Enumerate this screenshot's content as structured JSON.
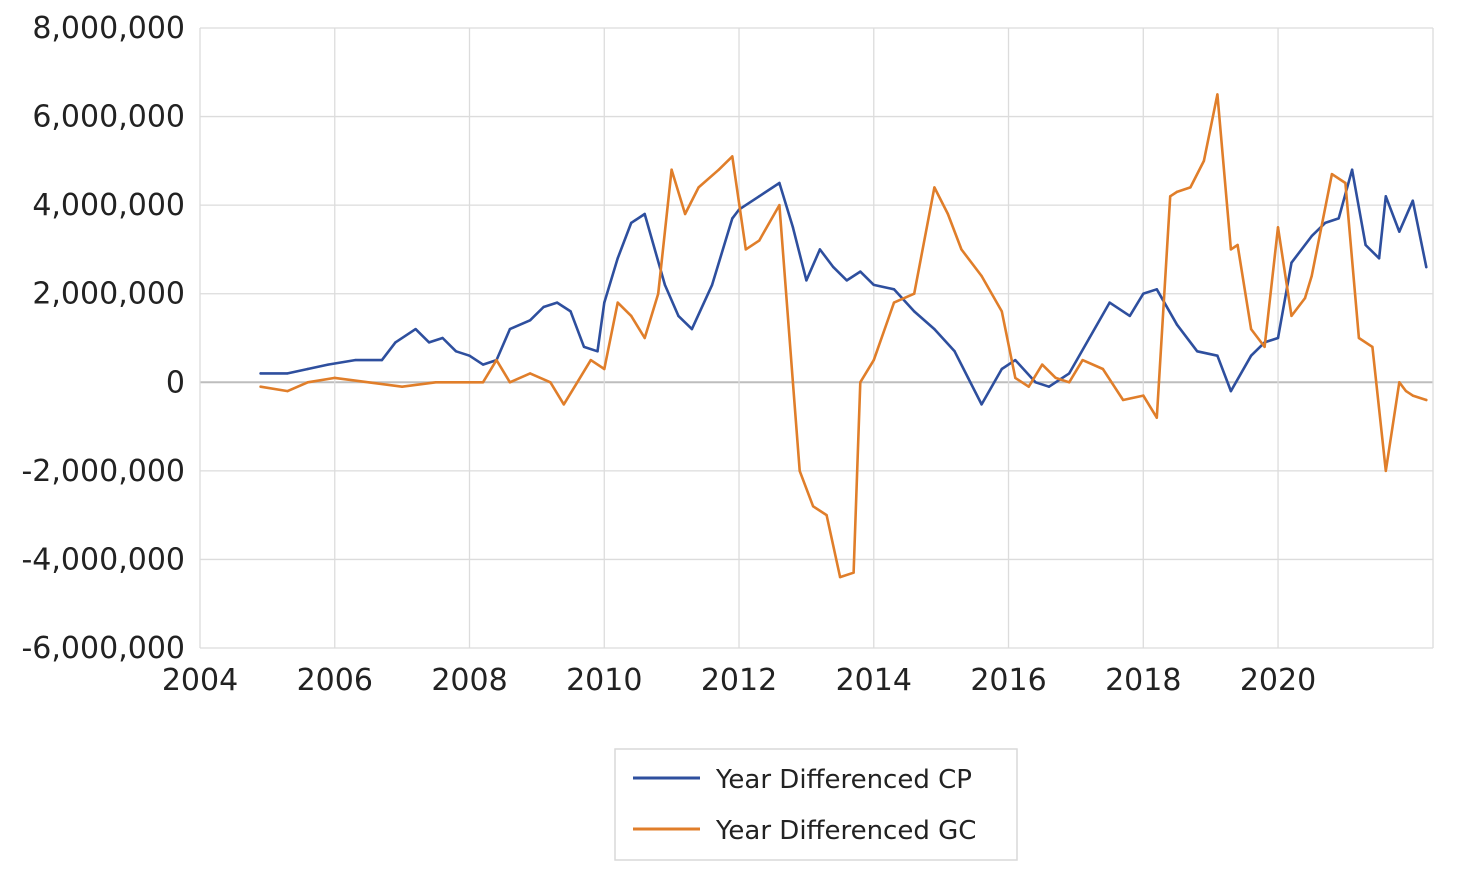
{
  "chart_data": {
    "type": "line",
    "title": "",
    "xlabel": "",
    "ylabel": "",
    "xlim": [
      2004,
      2022.3
    ],
    "ylim": [
      -6000000,
      8000000
    ],
    "x_ticks": [
      2004,
      2006,
      2008,
      2010,
      2012,
      2014,
      2016,
      2018,
      2020
    ],
    "x_tick_labels": [
      "2004",
      "2006",
      "2008",
      "2010",
      "2012",
      "2014",
      "2016",
      "2018",
      "2020"
    ],
    "y_ticks": [
      -6000000,
      -4000000,
      -2000000,
      0,
      2000000,
      4000000,
      6000000,
      8000000
    ],
    "y_tick_labels": [
      "-6,000,000",
      "-4,000,000",
      "-2,000,000",
      "0",
      "2,000,000",
      "4,000,000",
      "6,000,000",
      "8,000,000"
    ],
    "grid": true,
    "legend_position": "bottom",
    "series": [
      {
        "name": "Year Differenced CP",
        "color": "#2E4F9E",
        "x": [
          2004.9,
          2005.3,
          2005.6,
          2005.9,
          2006.3,
          2006.7,
          2006.9,
          2007.2,
          2007.4,
          2007.6,
          2007.8,
          2008.0,
          2008.2,
          2008.4,
          2008.6,
          2008.9,
          2009.1,
          2009.3,
          2009.5,
          2009.7,
          2009.9,
          2010.0,
          2010.2,
          2010.4,
          2010.6,
          2010.9,
          2011.1,
          2011.3,
          2011.6,
          2011.9,
          2012.0,
          2012.3,
          2012.6,
          2012.8,
          2013.0,
          2013.2,
          2013.4,
          2013.6,
          2013.8,
          2014.0,
          2014.3,
          2014.6,
          2014.9,
          2015.2,
          2015.4,
          2015.6,
          2015.9,
          2016.1,
          2016.4,
          2016.6,
          2016.9,
          2017.2,
          2017.5,
          2017.8,
          2018.0,
          2018.2,
          2018.5,
          2018.8,
          2019.1,
          2019.3,
          2019.6,
          2019.8,
          2020.0,
          2020.2,
          2020.5,
          2020.7,
          2020.9,
          2021.1,
          2021.3,
          2021.5,
          2021.6,
          2021.8,
          2022.0,
          2022.2
        ],
        "values": [
          200000,
          200000,
          300000,
          400000,
          500000,
          500000,
          900000,
          1200000,
          900000,
          1000000,
          700000,
          600000,
          400000,
          500000,
          1200000,
          1400000,
          1700000,
          1800000,
          1600000,
          800000,
          700000,
          1800000,
          2800000,
          3600000,
          3800000,
          2200000,
          1500000,
          1200000,
          2200000,
          3700000,
          3900000,
          4200000,
          4500000,
          3500000,
          2300000,
          3000000,
          2600000,
          2300000,
          2500000,
          2200000,
          2100000,
          1600000,
          1200000,
          700000,
          100000,
          -500000,
          300000,
          500000,
          0,
          -100000,
          200000,
          1000000,
          1800000,
          1500000,
          2000000,
          2100000,
          1300000,
          700000,
          600000,
          -200000,
          600000,
          900000,
          1000000,
          2700000,
          3300000,
          3600000,
          3700000,
          4800000,
          3100000,
          2800000,
          4200000,
          3400000,
          4100000,
          2600000
        ]
      },
      {
        "name": "Year Differenced GC",
        "color": "#E07E2A",
        "x": [
          2004.9,
          2005.3,
          2005.6,
          2006.0,
          2006.5,
          2007.0,
          2007.5,
          2008.0,
          2008.2,
          2008.4,
          2008.6,
          2008.9,
          2009.2,
          2009.4,
          2009.6,
          2009.8,
          2010.0,
          2010.2,
          2010.4,
          2010.6,
          2010.8,
          2011.0,
          2011.2,
          2011.4,
          2011.7,
          2011.9,
          2012.1,
          2012.3,
          2012.6,
          2012.8,
          2012.9,
          2013.1,
          2013.3,
          2013.5,
          2013.7,
          2013.8,
          2014.0,
          2014.3,
          2014.6,
          2014.9,
          2015.1,
          2015.3,
          2015.6,
          2015.9,
          2016.1,
          2016.3,
          2016.5,
          2016.7,
          2016.9,
          2017.1,
          2017.4,
          2017.7,
          2018.0,
          2018.2,
          2018.4,
          2018.5,
          2018.7,
          2018.9,
          2019.1,
          2019.3,
          2019.4,
          2019.6,
          2019.8,
          2020.0,
          2020.2,
          2020.4,
          2020.5,
          2020.8,
          2021.0,
          2021.2,
          2021.4,
          2021.6,
          2021.8,
          2021.9,
          2022.0,
          2022.2
        ],
        "values": [
          -100000,
          -200000,
          0,
          100000,
          0,
          -100000,
          0,
          0,
          0,
          500000,
          0,
          200000,
          0,
          -500000,
          0,
          500000,
          300000,
          1800000,
          1500000,
          1000000,
          2000000,
          4800000,
          3800000,
          4400000,
          4800000,
          5100000,
          3000000,
          3200000,
          4000000,
          0,
          -2000000,
          -2800000,
          -3000000,
          -4400000,
          -4300000,
          0,
          500000,
          1800000,
          2000000,
          4400000,
          3800000,
          3000000,
          2400000,
          1600000,
          100000,
          -100000,
          400000,
          100000,
          0,
          500000,
          300000,
          -400000,
          -300000,
          -800000,
          4200000,
          4300000,
          4400000,
          5000000,
          6500000,
          3000000,
          3100000,
          1200000,
          800000,
          3500000,
          1500000,
          1900000,
          2400000,
          4700000,
          4500000,
          1000000,
          800000,
          -2000000,
          0,
          -200000,
          -300000,
          -400000
        ]
      }
    ]
  }
}
